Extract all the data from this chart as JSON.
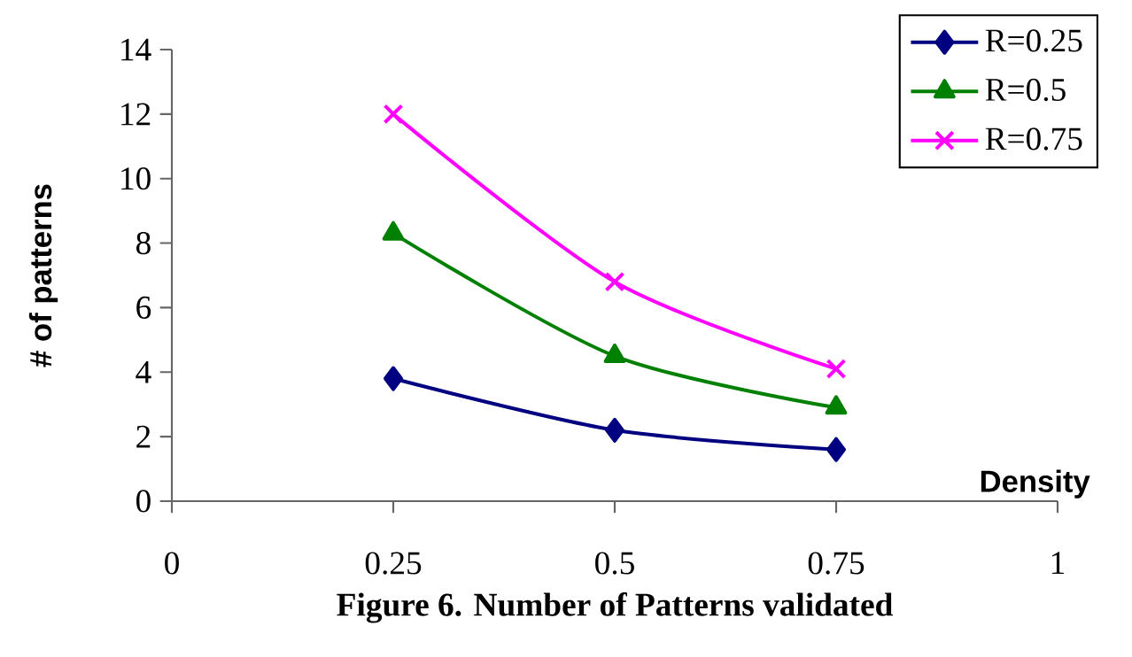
{
  "chart_data": {
    "type": "line",
    "title": "Figure 6. Number of Patterns validated",
    "xlabel": "Density",
    "ylabel": "# of patterns",
    "x": [
      0.25,
      0.5,
      0.75
    ],
    "series": [
      {
        "name": "R=0.25",
        "color": "#000080",
        "marker": "diamond",
        "values": [
          3.8,
          2.2,
          1.6
        ]
      },
      {
        "name": "R=0.5",
        "color": "#008000",
        "marker": "triangle",
        "values": [
          8.3,
          4.5,
          2.9
        ]
      },
      {
        "name": "R=0.75",
        "color": "#ff00ff",
        "marker": "cross",
        "values": [
          12,
          6.8,
          4.1
        ]
      }
    ],
    "xlim": [
      0,
      1
    ],
    "xticks": [
      0,
      0.25,
      0.5,
      0.75,
      1
    ],
    "ylim": [
      0,
      14
    ],
    "yticks": [
      0,
      2,
      4,
      6,
      8,
      10,
      12,
      14
    ],
    "grid": false,
    "legend": "top right",
    "line_style": "solid"
  }
}
